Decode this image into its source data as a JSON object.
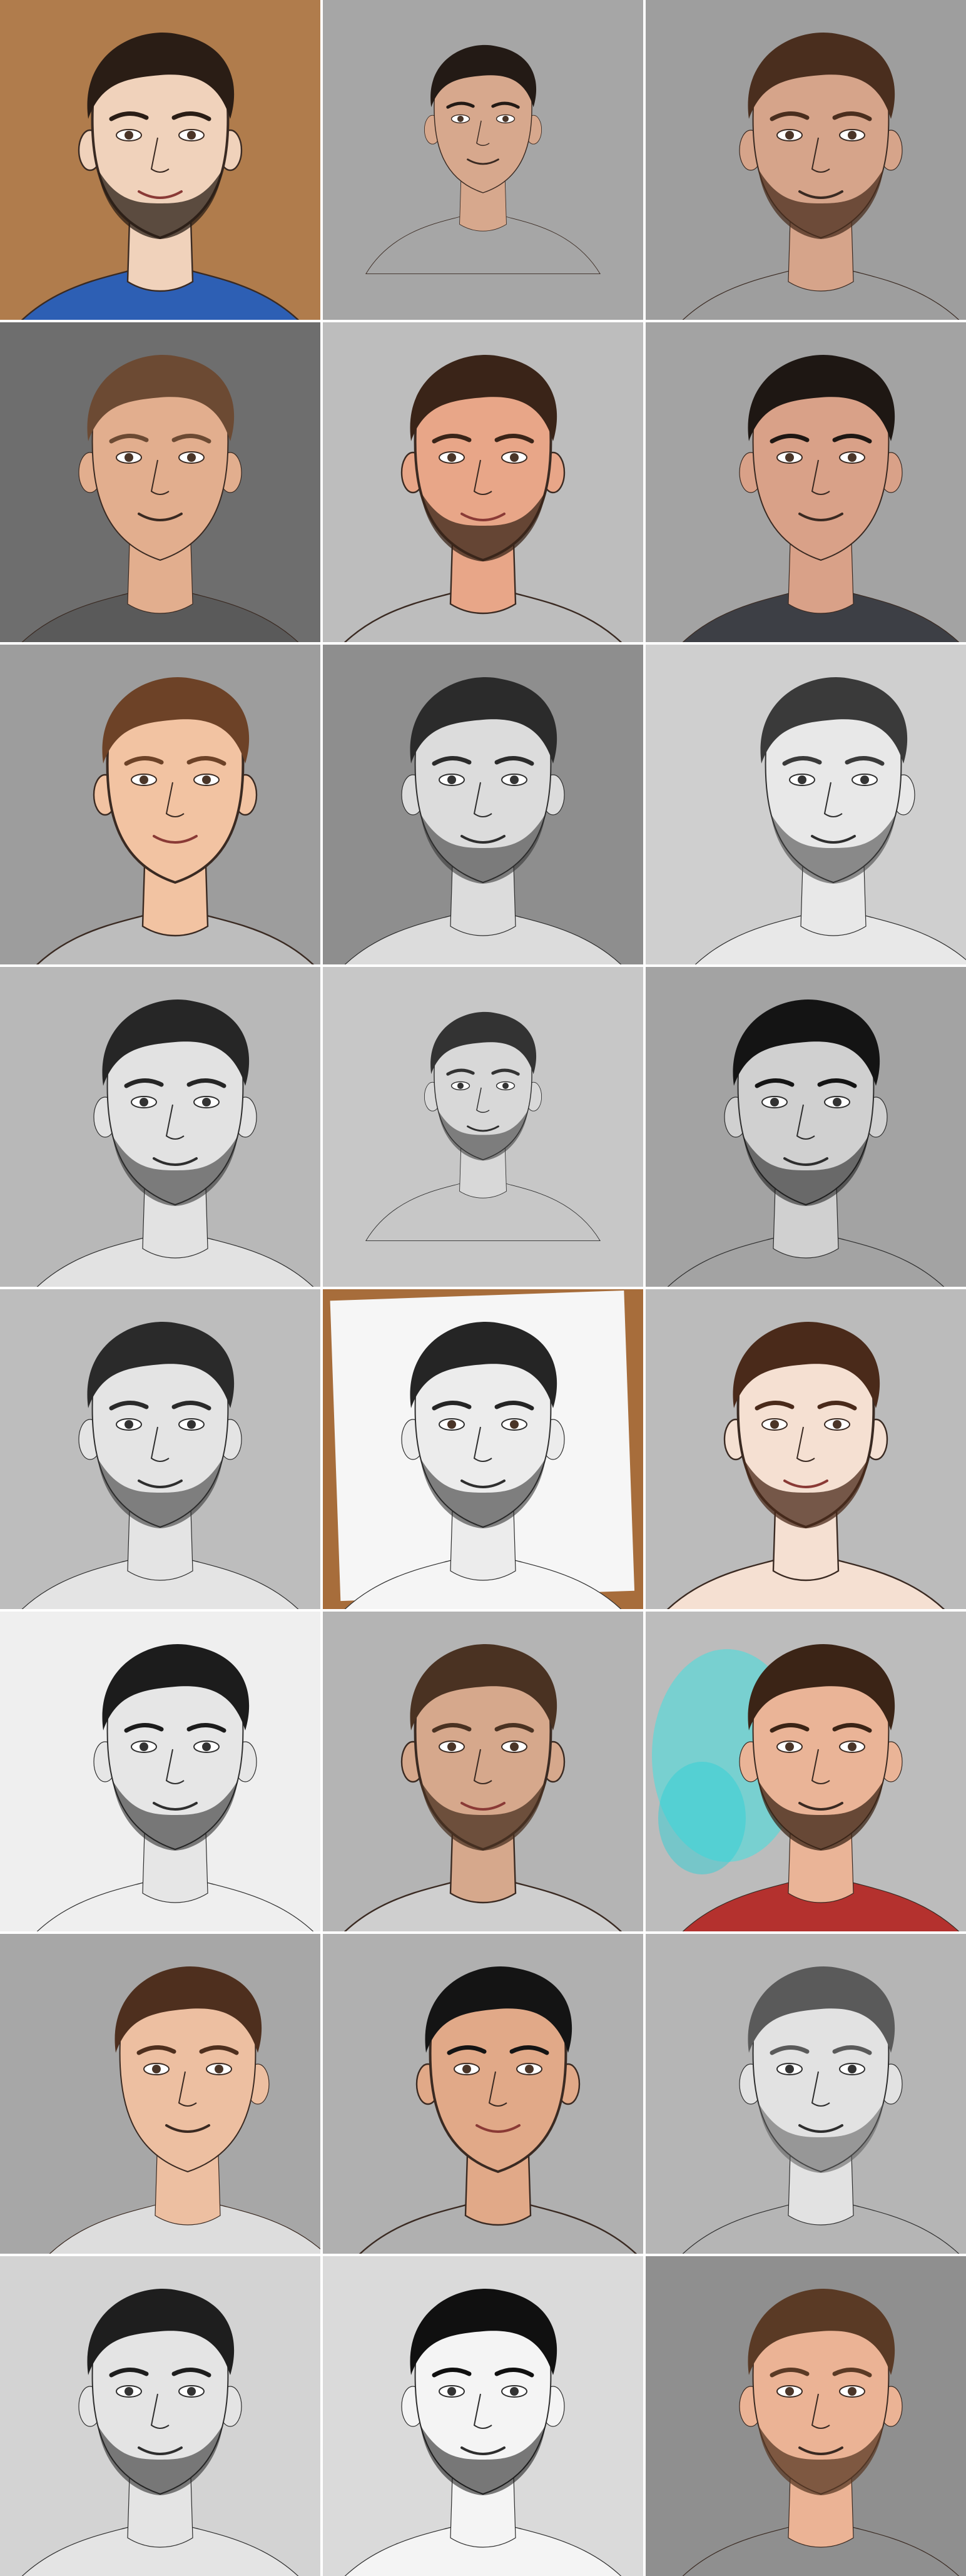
{
  "grid": {
    "rows": 8,
    "cols": 3,
    "tiles": [
      {
        "style": "cartoon",
        "bg": "#b07c4c",
        "skin": "#f0d2bb",
        "hair": "#2a1d15",
        "shirt": "#2d5fb4",
        "pose": "front",
        "beard": true
      },
      {
        "style": "photo",
        "bg": "#a6a6a6",
        "skin": "#d7a88d",
        "hair": "#231a15",
        "shirt": "#a6a6a6",
        "pose": "front-small",
        "beard": false
      },
      {
        "style": "photo",
        "bg": "#9e9e9e",
        "skin": "#d6a48a",
        "hair": "#4a2e1e",
        "shirt": "#9e9e9e",
        "pose": "three-quarter",
        "beard": true
      },
      {
        "style": "photo",
        "bg": "#6e6e6e",
        "skin": "#e2ae8e",
        "hair": "#6c4a33",
        "shirt": "#5a5a5a",
        "pose": "front",
        "beard": false
      },
      {
        "style": "cartoon",
        "bg": "#bdbdbd",
        "skin": "#e8a688",
        "hair": "#3a2418",
        "shirt": "#bdbdbd",
        "pose": "front",
        "beard": true
      },
      {
        "style": "photo",
        "bg": "#a3a3a3",
        "skin": "#d9a188",
        "hair": "#1e1713",
        "shirt": "#3d3f45",
        "pose": "three-quarter",
        "beard": false
      },
      {
        "style": "cartoon",
        "bg": "#9d9d9d",
        "skin": "#f2c3a2",
        "hair": "#6d4227",
        "shirt": "#bdbdbd",
        "pose": "three-quarter",
        "beard": false
      },
      {
        "style": "sketch",
        "bg": "#8e8e8e",
        "skin": "#dcdcdc",
        "hair": "#2b2b2b",
        "shirt": "#dcdcdc",
        "pose": "front",
        "beard": true
      },
      {
        "style": "sketch",
        "bg": "#cfcfcf",
        "skin": "#e8e8e8",
        "hair": "#3a3a3a",
        "shirt": "#e8e8e8",
        "pose": "profile",
        "beard": true
      },
      {
        "style": "sketch",
        "bg": "#b8b8b8",
        "skin": "#e2e2e2",
        "hair": "#262626",
        "shirt": "#e2e2e2",
        "pose": "three-quarter",
        "beard": true
      },
      {
        "style": "sketch",
        "bg": "#c7c7c7",
        "skin": "#d8d8d8",
        "hair": "#333333",
        "shirt": "#c7c7c7",
        "pose": "front-small",
        "beard": true
      },
      {
        "style": "sketch",
        "bg": "#a3a3a3",
        "skin": "#d0d0d0",
        "hair": "#141414",
        "shirt": "#a3a3a3",
        "pose": "front",
        "beard": true
      },
      {
        "style": "sketch",
        "bg": "#bdbdbd",
        "skin": "#e4e4e4",
        "hair": "#2a2a2a",
        "shirt": "#e4e4e4",
        "pose": "front",
        "beard": true
      },
      {
        "style": "paper",
        "bg": "#a76d3b",
        "skin": "#ececec",
        "hair": "#252525",
        "shirt": "#f5f5f5",
        "pose": "front",
        "beard": true
      },
      {
        "style": "cartoon",
        "bg": "#bbbbbb",
        "skin": "#f5e0d2",
        "hair": "#4a2a1a",
        "shirt": "#f5e0d2",
        "pose": "front",
        "beard": true
      },
      {
        "style": "sketch",
        "bg": "#efefef",
        "skin": "#e6e6e6",
        "hair": "#1c1c1c",
        "shirt": "#efefef",
        "pose": "three-quarter",
        "beard": true
      },
      {
        "style": "cartoon",
        "bg": "#b4b4b4",
        "skin": "#d6a88c",
        "hair": "#4a3222",
        "shirt": "#cfcfcf",
        "pose": "front",
        "beard": true
      },
      {
        "style": "splash",
        "bg": "#bcbcbc",
        "skin": "#eab497",
        "hair": "#3b2416",
        "shirt": "#b4312e",
        "pose": "three-quarter",
        "beard": true
      },
      {
        "style": "photo",
        "bg": "#a7a7a7",
        "skin": "#edbfa1",
        "hair": "#4e2f1e",
        "shirt": "#dddddd",
        "pose": "profile",
        "beard": false
      },
      {
        "style": "cartoon",
        "bg": "#b0b0b0",
        "skin": "#e1a988",
        "hair": "#141414",
        "shirt": "#b0b0b0",
        "pose": "three-quarter",
        "beard": false
      },
      {
        "style": "sketch",
        "bg": "#b5b5b5",
        "skin": "#e2e2e2",
        "hair": "#5a5a5a",
        "shirt": "#b5b5b5",
        "pose": "three-quarter",
        "beard": true
      },
      {
        "style": "sketch",
        "bg": "#d3d3d3",
        "skin": "#e4e4e4",
        "hair": "#1e1e1e",
        "shirt": "#e4e4e4",
        "pose": "front",
        "beard": true
      },
      {
        "style": "sketch",
        "bg": "#dadada",
        "skin": "#f4f4f4",
        "hair": "#101010",
        "shirt": "#f4f4f4",
        "pose": "front",
        "beard": true
      },
      {
        "style": "photo",
        "bg": "#8f8f8f",
        "skin": "#ebb395",
        "hair": "#5a3a25",
        "shirt": "#8f8f8f",
        "pose": "three-quarter",
        "beard": true
      }
    ]
  }
}
